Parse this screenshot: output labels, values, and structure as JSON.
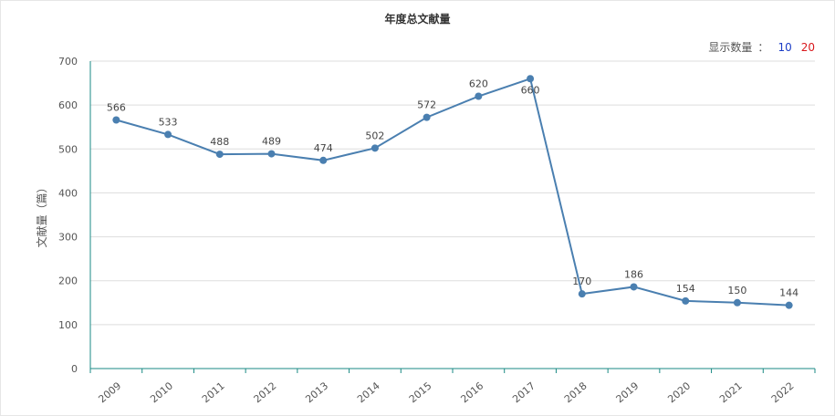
{
  "chart_data": {
    "type": "line",
    "title": "年度总文献量",
    "xlabel": "",
    "ylabel": "文献量（篇）",
    "ylim": [
      0,
      700
    ],
    "yticks": [
      0,
      100,
      200,
      300,
      400,
      500,
      600,
      700
    ],
    "categories": [
      "2009",
      "2010",
      "2011",
      "2012",
      "2013",
      "2014",
      "2015",
      "2016",
      "2017",
      "2018",
      "2019",
      "2020",
      "2021",
      "2022"
    ],
    "series": [
      {
        "values": [
          566,
          533,
          488,
          489,
          474,
          502,
          572,
          620,
          660,
          170,
          186,
          154,
          150,
          144
        ]
      }
    ],
    "grid": true,
    "line_color": "#4a7fb0",
    "axis_color": "#1a8a84"
  },
  "controls": {
    "display_count_label": "显示数量",
    "colon": "：",
    "options": [
      "10",
      "20"
    ]
  }
}
